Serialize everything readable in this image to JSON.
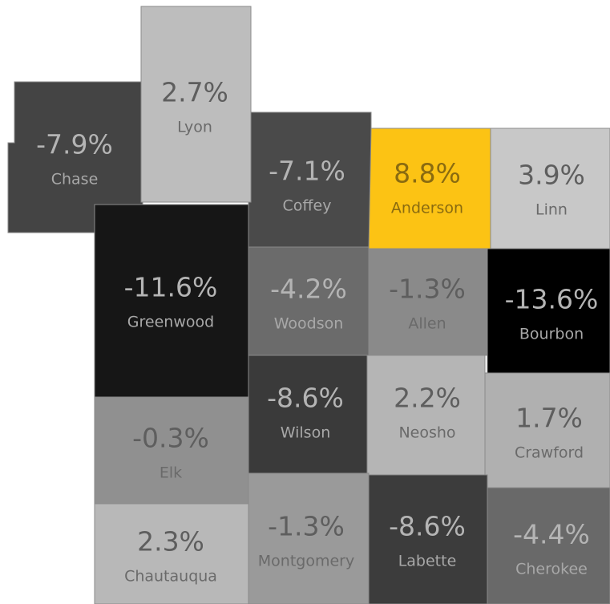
{
  "counties": [
    {
      "name": "Chase",
      "value": -7.9,
      "label": "-7.9%",
      "color": "#444444"
    },
    {
      "name": "Lyon",
      "value": 2.7,
      "label": "2.7%",
      "color": "#bdbdbd"
    },
    {
      "name": "Coffey",
      "value": -7.1,
      "label": "-7.1%",
      "color": "#4a4a4a"
    },
    {
      "name": "Anderson",
      "value": 8.8,
      "label": "8.8%",
      "color": "#fcc314"
    },
    {
      "name": "Linn",
      "value": 3.9,
      "label": "3.9%",
      "color": "#c8c8c8"
    },
    {
      "name": "Greenwood",
      "value": -11.6,
      "label": "-11.6%",
      "color": "#161616"
    },
    {
      "name": "Woodson",
      "value": -4.2,
      "label": "-4.2%",
      "color": "#6b6b6b"
    },
    {
      "name": "Allen",
      "value": -1.3,
      "label": "-1.3%",
      "color": "#8a8a8a"
    },
    {
      "name": "Bourbon",
      "value": -13.6,
      "label": "-13.6%",
      "color": "#000000"
    },
    {
      "name": "Elk",
      "value": -0.3,
      "label": "-0.3%",
      "color": "#909090"
    },
    {
      "name": "Wilson",
      "value": -8.6,
      "label": "-8.6%",
      "color": "#3a3a3a"
    },
    {
      "name": "Neosho",
      "value": 2.2,
      "label": "2.2%",
      "color": "#b5b5b5"
    },
    {
      "name": "Crawford",
      "value": 1.7,
      "label": "1.7%",
      "color": "#b0b0b0"
    },
    {
      "name": "Chautauqua",
      "value": 2.3,
      "label": "2.3%",
      "color": "#b8b8b8"
    },
    {
      "name": "Montgomery",
      "value": -1.3,
      "label": "-1.3%",
      "color": "#9a9a9a"
    },
    {
      "name": "Labette",
      "value": -8.6,
      "label": "-8.6%",
      "color": "#3c3c3c"
    },
    {
      "name": "Cherokee",
      "value": -4.4,
      "label": "-4.4%",
      "color": "#696969"
    }
  ]
}
